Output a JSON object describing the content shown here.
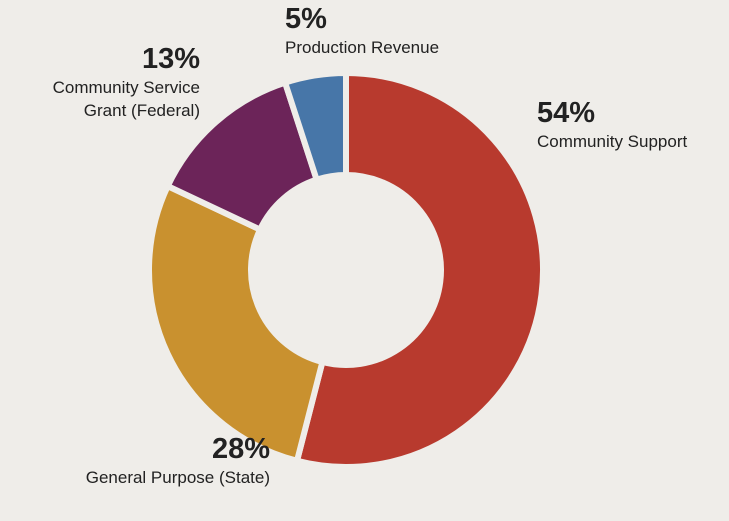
{
  "chart_data": {
    "type": "donut",
    "categories": [
      "Community Support",
      "General Purpose (State)",
      "Community Service Grant (Federal)",
      "Production Revenue"
    ],
    "values": [
      54,
      28,
      13,
      5
    ],
    "value_labels": [
      "54%",
      "28%",
      "13%",
      "5%"
    ],
    "colors": [
      "#b83a2e",
      "#c9912f",
      "#6c2459",
      "#4776a8"
    ]
  }
}
